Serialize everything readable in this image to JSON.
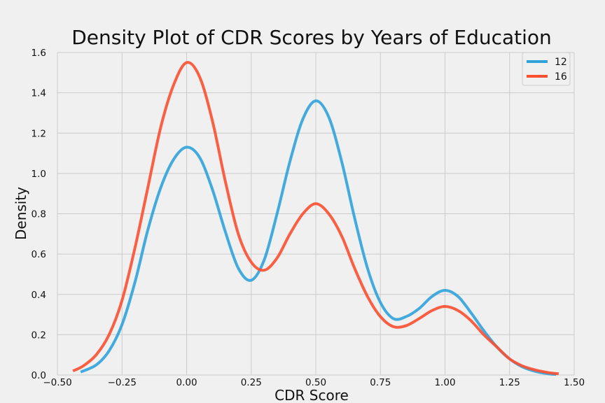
{
  "chart_data": {
    "type": "line",
    "title": "Density Plot of CDR Scores by Years of Education",
    "xlabel": "CDR Score",
    "ylabel": "Density",
    "xlim": [
      -0.5,
      1.5
    ],
    "ylim": [
      0.0,
      1.6
    ],
    "x_ticks": [
      -0.5,
      -0.25,
      0.0,
      0.25,
      0.5,
      0.75,
      1.0,
      1.25,
      1.5
    ],
    "x_tick_labels": [
      "−0.50",
      "−0.25",
      "0.00",
      "0.25",
      "0.50",
      "0.75",
      "1.00",
      "1.25",
      "1.50"
    ],
    "y_ticks": [
      0.0,
      0.2,
      0.4,
      0.6,
      0.8,
      1.0,
      1.2,
      1.4,
      1.6
    ],
    "y_tick_labels": [
      "0.0",
      "0.2",
      "0.4",
      "0.6",
      "0.8",
      "1.0",
      "1.2",
      "1.4",
      "1.6"
    ],
    "grid": true,
    "legend_position": "top-right",
    "series": [
      {
        "name": "12",
        "color": "#30a2da",
        "points": [
          [
            -0.41,
            0.015
          ],
          [
            -0.35,
            0.05
          ],
          [
            -0.3,
            0.12
          ],
          [
            -0.25,
            0.25
          ],
          [
            -0.2,
            0.46
          ],
          [
            -0.15,
            0.72
          ],
          [
            -0.1,
            0.93
          ],
          [
            -0.05,
            1.07
          ],
          [
            0.0,
            1.13
          ],
          [
            0.05,
            1.08
          ],
          [
            0.1,
            0.92
          ],
          [
            0.15,
            0.71
          ],
          [
            0.2,
            0.53
          ],
          [
            0.25,
            0.47
          ],
          [
            0.3,
            0.57
          ],
          [
            0.35,
            0.8
          ],
          [
            0.4,
            1.06
          ],
          [
            0.45,
            1.27
          ],
          [
            0.5,
            1.36
          ],
          [
            0.55,
            1.28
          ],
          [
            0.6,
            1.06
          ],
          [
            0.65,
            0.78
          ],
          [
            0.7,
            0.53
          ],
          [
            0.75,
            0.36
          ],
          [
            0.8,
            0.28
          ],
          [
            0.85,
            0.29
          ],
          [
            0.9,
            0.33
          ],
          [
            0.95,
            0.39
          ],
          [
            1.0,
            0.42
          ],
          [
            1.05,
            0.39
          ],
          [
            1.1,
            0.31
          ],
          [
            1.15,
            0.22
          ],
          [
            1.2,
            0.14
          ],
          [
            1.25,
            0.08
          ],
          [
            1.3,
            0.04
          ],
          [
            1.35,
            0.018
          ],
          [
            1.4,
            0.006
          ],
          [
            1.43,
            0.003
          ]
        ]
      },
      {
        "name": "16",
        "color": "#fc4f30",
        "points": [
          [
            -0.44,
            0.02
          ],
          [
            -0.4,
            0.045
          ],
          [
            -0.35,
            0.1
          ],
          [
            -0.3,
            0.2
          ],
          [
            -0.25,
            0.37
          ],
          [
            -0.2,
            0.63
          ],
          [
            -0.15,
            0.93
          ],
          [
            -0.1,
            1.23
          ],
          [
            -0.05,
            1.44
          ],
          [
            0.0,
            1.55
          ],
          [
            0.05,
            1.48
          ],
          [
            0.1,
            1.26
          ],
          [
            0.15,
            0.96
          ],
          [
            0.2,
            0.7
          ],
          [
            0.25,
            0.56
          ],
          [
            0.3,
            0.52
          ],
          [
            0.35,
            0.58
          ],
          [
            0.4,
            0.7
          ],
          [
            0.45,
            0.8
          ],
          [
            0.5,
            0.85
          ],
          [
            0.55,
            0.8
          ],
          [
            0.6,
            0.69
          ],
          [
            0.65,
            0.53
          ],
          [
            0.7,
            0.39
          ],
          [
            0.75,
            0.29
          ],
          [
            0.8,
            0.24
          ],
          [
            0.85,
            0.245
          ],
          [
            0.9,
            0.28
          ],
          [
            0.95,
            0.32
          ],
          [
            1.0,
            0.34
          ],
          [
            1.05,
            0.32
          ],
          [
            1.1,
            0.27
          ],
          [
            1.15,
            0.2
          ],
          [
            1.2,
            0.14
          ],
          [
            1.25,
            0.08
          ],
          [
            1.3,
            0.045
          ],
          [
            1.35,
            0.025
          ],
          [
            1.4,
            0.012
          ],
          [
            1.44,
            0.006
          ]
        ]
      }
    ]
  }
}
